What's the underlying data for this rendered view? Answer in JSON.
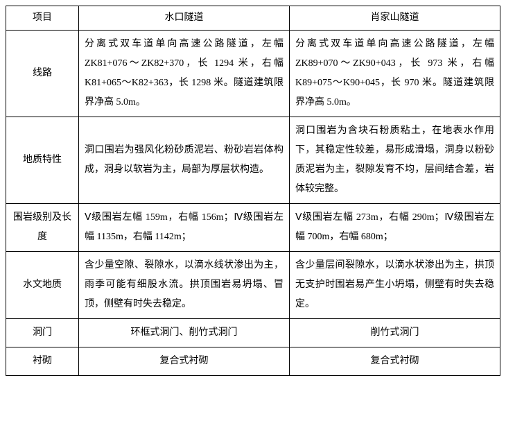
{
  "table": {
    "header": {
      "col0": "项目",
      "col1": "水口隧道",
      "col2": "肖家山隧道"
    },
    "rows": [
      {
        "label": "线路",
        "c1": "分离式双车道单向高速公路隧道，左幅 ZK81+076～ZK82+370，长 1294 米，右幅 K81+065～K82+363，长 1298 米。隧道建筑限界净高 5.0m。",
        "c2": "分离式双车道单向高速公路隧道，左幅 ZK89+070～ZK90+043，长 973 米，右幅 K89+075～K90+045，长 970 米。隧道建筑限界净高 5.0m。"
      },
      {
        "label": "地质特性",
        "c1": "洞口围岩为强风化粉砂质泥岩、粉砂岩岩体构成，洞身以软岩为主，局部为厚层状构造。",
        "c2": "洞口围岩为含块石粉质粘土，在地表水作用下，其稳定性较差，易形成滑塌，洞身以粉砂质泥岩为主，裂隙发育不均，层间结合差，岩体较完整。"
      },
      {
        "label": "围岩级别及长度",
        "c1": "Ⅴ级围岩左幅 159m，右幅 156m；Ⅳ级围岩左幅 1135m，右幅 1142m；",
        "c2": "Ⅴ级围岩左幅 273m，右幅 290m；Ⅳ级围岩左幅 700m，右幅 680m；"
      },
      {
        "label": "水文地质",
        "c1": "含少量空隙、裂隙水，以滴水线状渗出为主，雨季可能有细股水流。拱顶围岩易坍塌、冒顶，侧壁有时失去稳定。",
        "c2": "含少量层间裂隙水，以滴水状渗出为主，拱顶无支护时围岩易产生小坍塌，侧壁有时失去稳定。"
      },
      {
        "label": "洞门",
        "c1": "环框式洞门、削竹式洞门",
        "c2": "削竹式洞门",
        "center": true
      },
      {
        "label": "衬砌",
        "c1": "复合式衬砌",
        "c2": "复合式衬砌",
        "center": true
      }
    ]
  },
  "style": {
    "border_color": "#000000",
    "text_color": "#000000",
    "background": "#ffffff",
    "font_size_pt": 10.5,
    "line_height": 2.0,
    "font_family": "SimSun"
  }
}
